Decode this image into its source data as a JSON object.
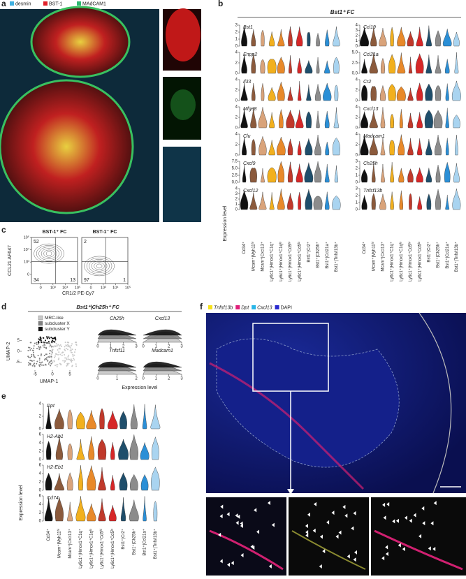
{
  "panel_a": {
    "label": "a",
    "legend": [
      {
        "name": "desmin",
        "color": "#3fb0e0"
      },
      {
        "name": "BST-1",
        "color": "#e0202a"
      },
      {
        "name": "MAdCAM1",
        "color": "#2eb872"
      }
    ]
  },
  "panel_b": {
    "label": "b",
    "title": "Bst1⁺ FC",
    "y_axis_label": "Expression level",
    "categories": [
      "Cd34⁺",
      "Mcam⁺|Myh11ʰⁱ",
      "Mcam⁺|Cxcl13⁺",
      "Ly6c1⁺|Hmox1⁺C1q⁺",
      "Ly6c1⁺|Hmox1⁺C1qˡᵒ",
      "Ly6c1⁺|Hmox1⁺Cd5ʰⁱ",
      "Ly6c1⁺|Hmox1⁺Cd5ˡᵒ",
      "Bst1⁺|Cr2⁺",
      "Bst1⁺|Ch25h⁺",
      "Bst1⁺|Ccl21a⁺",
      "Bst1⁺|Tnfsf13b⁺"
    ],
    "colors": [
      "#111111",
      "#8b5a3c",
      "#d9a37a",
      "#f2b01e",
      "#e8892a",
      "#c0392b",
      "#d62728",
      "#1f4e6b",
      "#8c8c8c",
      "#2b8fd6",
      "#a9d4f0"
    ],
    "genes": [
      {
        "name": "Bst1",
        "yticks": [
          0,
          1,
          2,
          3
        ]
      },
      {
        "name": "Ccl19",
        "yticks": [
          0,
          1,
          2,
          3,
          4
        ]
      },
      {
        "name": "Enpp2",
        "yticks": [
          0,
          2,
          4
        ]
      },
      {
        "name": "Ccl21a",
        "yticks": [
          {
            "value": 0,
            "label": "0.0"
          },
          {
            "value": 2.5,
            "label": "2.5"
          },
          {
            "value": 5,
            "label": "5.0"
          }
        ]
      },
      {
        "name": "Il33",
        "yticks": [
          0,
          2,
          4
        ]
      },
      {
        "name": "Cr2",
        "yticks": [
          0,
          2,
          4
        ]
      },
      {
        "name": "Mfge8",
        "yticks": [
          0,
          2,
          4
        ]
      },
      {
        "name": "Cxcl13",
        "yticks": [
          0,
          2,
          4
        ]
      },
      {
        "name": "Clu",
        "yticks": [
          0,
          2,
          4
        ]
      },
      {
        "name": "Madcam1",
        "yticks": [
          0,
          2,
          4
        ]
      },
      {
        "name": "Cxcl9",
        "yticks": [
          {
            "value": 0,
            "label": "0.0"
          },
          {
            "value": 2.5,
            "label": "2.5"
          },
          {
            "value": 5,
            "label": "5.0"
          },
          {
            "value": 7.5,
            "label": "7.5"
          }
        ]
      },
      {
        "name": "Ch25h",
        "yticks": [
          0,
          1,
          2,
          3
        ]
      },
      {
        "name": "Cxcl12",
        "yticks": [
          0,
          1,
          2,
          3,
          4
        ]
      },
      {
        "name": "Tnfsf13b",
        "yticks": [
          0,
          1,
          2,
          3
        ]
      }
    ]
  },
  "panel_c": {
    "label": "c",
    "y_axis_label": "CCL21 AF647",
    "x_axis_label": "CR1/2 PE-Cy7",
    "ticks": [
      0,
      {
        "value": 1000,
        "label": "10³"
      },
      {
        "value": 10000,
        "label": "10⁴"
      },
      {
        "value": 100000,
        "label": "10⁵"
      }
    ],
    "plots": [
      {
        "title": "BST-1⁺ FC",
        "upper_left": 52,
        "lower_left": 34,
        "lower_right": 13
      },
      {
        "title": "BST-1⁻ FC",
        "upper_left": 2,
        "lower_left": 97,
        "lower_right": 1
      }
    ]
  },
  "panel_d": {
    "label": "d",
    "title": "Bst1⁺|Ch25h⁺ FC",
    "legend": [
      {
        "name": "MRC-like",
        "color": "#c8c8c8"
      },
      {
        "name": "subcluster X",
        "color": "#808080"
      },
      {
        "name": "subcluster Y",
        "color": "#111111"
      }
    ],
    "x_axis_label": "UMAP-1",
    "y_axis_label": "UMAP-2",
    "xticks": [
      -5,
      0,
      5
    ],
    "yticks": [
      -5,
      0,
      5
    ],
    "ridges": [
      {
        "name": "Ch25h",
        "xticks": [
          0,
          1,
          2,
          3
        ]
      },
      {
        "name": "Cxcl13",
        "xticks": [
          0,
          1,
          2,
          3
        ]
      },
      {
        "name": "Tnfsf11",
        "xticks": [
          0,
          1,
          2
        ]
      },
      {
        "name": "Madcam1",
        "xticks": [
          0,
          1,
          2,
          3
        ]
      }
    ],
    "ridge_axis_label": "Expression level"
  },
  "panel_e": {
    "label": "e",
    "y_axis_label": "Expression level",
    "categories": [
      "Cd34⁺",
      "Mcam⁺|Myh11ʰⁱ",
      "Mcam⁺|Cxcl13⁺",
      "Ly6c1⁺|Hmox1⁺C1q⁺",
      "Ly6c1⁺|Hmox1⁺C1qˡᵒ",
      "Ly6c1⁺|Hmox1⁺Cd5ʰⁱ",
      "Ly6c1⁺|Hmox1⁺Cd5ˡᵒ",
      "Bst1⁺|Cr2⁺",
      "Bst1⁺|Ch25h⁺",
      "Bst1⁺|Ccl21a⁺",
      "Bst1⁺|Tnfsf13b⁺"
    ],
    "colors": [
      "#111111",
      "#8b5a3c",
      "#d9a37a",
      "#f2b01e",
      "#e8892a",
      "#c0392b",
      "#d62728",
      "#1f4e6b",
      "#8c8c8c",
      "#2b8fd6",
      "#a9d4f0"
    ],
    "genes": [
      {
        "name": "Dpt",
        "yticks": [
          0,
          2,
          4
        ]
      },
      {
        "name": "H2-Ab1",
        "yticks": [
          0,
          2,
          4,
          6
        ]
      },
      {
        "name": "H2-Eb1",
        "yticks": [
          0,
          2,
          4,
          6
        ]
      },
      {
        "name": "Cd74",
        "yticks": [
          0,
          2,
          4,
          6
        ]
      }
    ]
  },
  "panel_f": {
    "label": "f",
    "legend": [
      {
        "name": "Tnfsf13b",
        "color": "#f5e11b"
      },
      {
        "name": "Dpt",
        "color": "#e0207a"
      },
      {
        "name": "Cxcl13",
        "color": "#29b6e8"
      },
      {
        "name": "DAPI",
        "color": "#2a2acf"
      }
    ]
  }
}
